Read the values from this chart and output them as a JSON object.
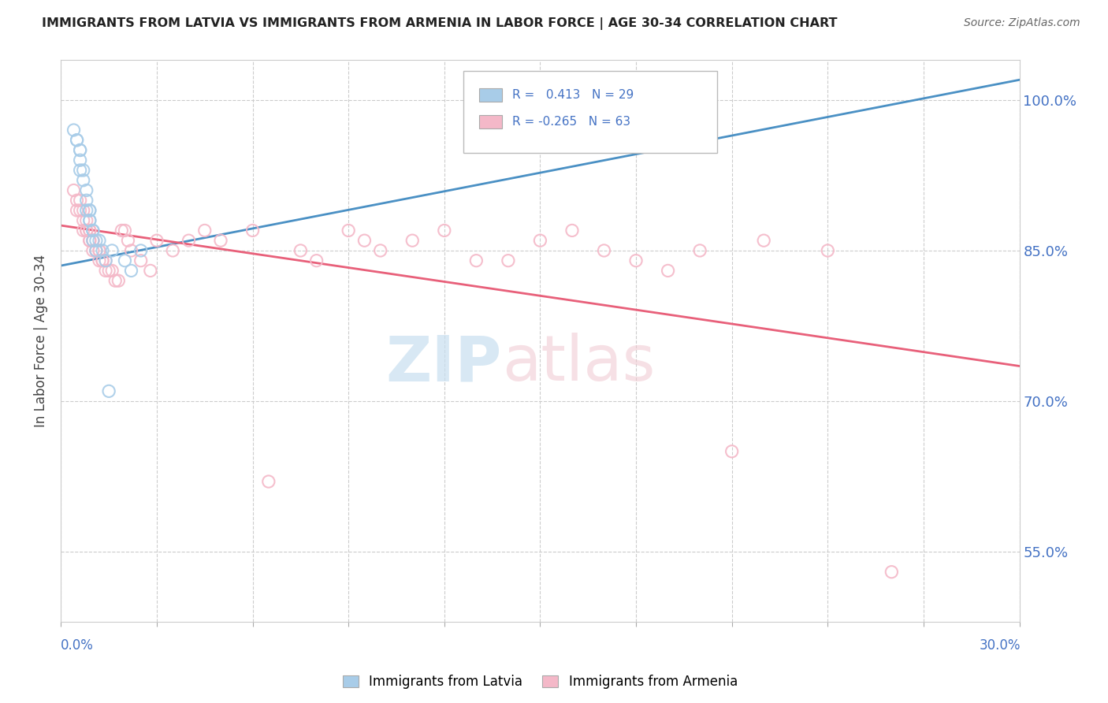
{
  "title": "IMMIGRANTS FROM LATVIA VS IMMIGRANTS FROM ARMENIA IN LABOR FORCE | AGE 30-34 CORRELATION CHART",
  "source": "Source: ZipAtlas.com",
  "ylabel": "In Labor Force | Age 30-34",
  "ytick_values": [
    0.55,
    0.7,
    0.85,
    1.0
  ],
  "xlim": [
    0.0,
    0.3
  ],
  "ylim": [
    0.48,
    1.04
  ],
  "latvia_R": 0.413,
  "latvia_N": 29,
  "armenia_R": -0.265,
  "armenia_N": 63,
  "latvia_color": "#a8cce8",
  "armenia_color": "#f4b8c8",
  "latvia_line_color": "#4a90c4",
  "armenia_line_color": "#e8607a",
  "legend_label_latvia": "Immigrants from Latvia",
  "legend_label_armenia": "Immigrants from Armenia",
  "latvia_x": [
    0.004,
    0.005,
    0.005,
    0.006,
    0.006,
    0.006,
    0.006,
    0.007,
    0.007,
    0.008,
    0.008,
    0.008,
    0.009,
    0.009,
    0.009,
    0.009,
    0.01,
    0.01,
    0.01,
    0.011,
    0.011,
    0.012,
    0.013,
    0.014,
    0.015,
    0.016,
    0.02,
    0.022,
    0.025
  ],
  "latvia_y": [
    0.97,
    0.96,
    0.96,
    0.95,
    0.95,
    0.94,
    0.93,
    0.93,
    0.92,
    0.91,
    0.9,
    0.89,
    0.89,
    0.89,
    0.88,
    0.88,
    0.87,
    0.87,
    0.86,
    0.86,
    0.85,
    0.86,
    0.85,
    0.84,
    0.71,
    0.85,
    0.84,
    0.83,
    0.85
  ],
  "armenia_x": [
    0.004,
    0.005,
    0.005,
    0.006,
    0.006,
    0.007,
    0.007,
    0.007,
    0.008,
    0.008,
    0.008,
    0.009,
    0.009,
    0.009,
    0.009,
    0.01,
    0.01,
    0.01,
    0.011,
    0.011,
    0.012,
    0.012,
    0.012,
    0.013,
    0.013,
    0.014,
    0.014,
    0.015,
    0.016,
    0.017,
    0.018,
    0.019,
    0.02,
    0.021,
    0.022,
    0.025,
    0.028,
    0.03,
    0.035,
    0.04,
    0.045,
    0.05,
    0.06,
    0.065,
    0.075,
    0.08,
    0.09,
    0.095,
    0.1,
    0.11,
    0.12,
    0.13,
    0.14,
    0.15,
    0.16,
    0.17,
    0.18,
    0.19,
    0.2,
    0.21,
    0.22,
    0.24,
    0.26
  ],
  "armenia_y": [
    0.91,
    0.9,
    0.89,
    0.9,
    0.89,
    0.89,
    0.88,
    0.87,
    0.88,
    0.87,
    0.87,
    0.87,
    0.87,
    0.86,
    0.86,
    0.86,
    0.86,
    0.85,
    0.85,
    0.85,
    0.85,
    0.85,
    0.84,
    0.84,
    0.84,
    0.84,
    0.83,
    0.83,
    0.83,
    0.82,
    0.82,
    0.87,
    0.87,
    0.86,
    0.85,
    0.84,
    0.83,
    0.86,
    0.85,
    0.86,
    0.87,
    0.86,
    0.87,
    0.62,
    0.85,
    0.84,
    0.87,
    0.86,
    0.85,
    0.86,
    0.87,
    0.84,
    0.84,
    0.86,
    0.87,
    0.85,
    0.84,
    0.83,
    0.85,
    0.65,
    0.86,
    0.85,
    0.53
  ],
  "latvia_trend_x0": 0.0,
  "latvia_trend_y0": 0.835,
  "latvia_trend_x1": 0.3,
  "latvia_trend_y1": 1.02,
  "armenia_trend_x0": 0.0,
  "armenia_trend_y0": 0.875,
  "armenia_trend_x1": 0.3,
  "armenia_trend_y1": 0.735
}
